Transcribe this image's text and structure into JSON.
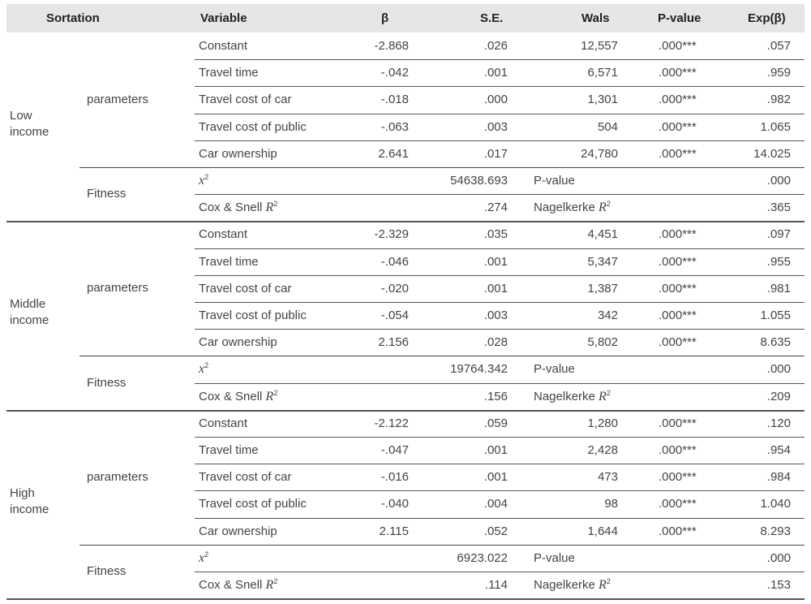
{
  "headers": {
    "sortation": "Sortation",
    "variable": "Variable",
    "beta": "β",
    "se": "S.E.",
    "wals": "Wals",
    "pvalue": "P-value",
    "expb": "Exp(β)"
  },
  "section_labels": {
    "parameters": "parameters",
    "fitness": "Fitness"
  },
  "fitness_labels": {
    "chi_symbol": "x",
    "chi_sup": "2",
    "pvalue": "P-value",
    "cox_prefix": "Cox & Snell ",
    "nagel_prefix": "Nagelkerke ",
    "r_symbol": "R",
    "r_sup": "2"
  },
  "groups": [
    {
      "label_line1": "Low",
      "label_line2": "income",
      "rows": [
        {
          "variable": "Constant",
          "beta": "-2.868",
          "se": ".026",
          "wals": "12,557",
          "p": ".000***",
          "exp": ".057"
        },
        {
          "variable": "Travel time",
          "beta": "-.042",
          "se": ".001",
          "wals": "6,571",
          "p": ".000***",
          "exp": ".959"
        },
        {
          "variable": "Travel cost of car",
          "beta": "-.018",
          "se": ".000",
          "wals": "1,301",
          "p": ".000***",
          "exp": ".982"
        },
        {
          "variable": "Travel cost of public",
          "beta": "-.063",
          "se": ".003",
          "wals": "504",
          "p": ".000***",
          "exp": "1.065"
        },
        {
          "variable": "Car ownership",
          "beta": "2.641",
          "se": ".017",
          "wals": "24,780",
          "p": ".000***",
          "exp": "14.025"
        }
      ],
      "fitness": {
        "chi2": "54638.693",
        "pvalue": ".000",
        "cox": ".274",
        "nagel": ".365"
      }
    },
    {
      "label_line1": "Middle",
      "label_line2": "income",
      "rows": [
        {
          "variable": "Constant",
          "beta": "-2.329",
          "se": ".035",
          "wals": "4,451",
          "p": ".000***",
          "exp": ".097"
        },
        {
          "variable": "Travel time",
          "beta": "-.046",
          "se": ".001",
          "wals": "5,347",
          "p": ".000***",
          "exp": ".955"
        },
        {
          "variable": "Travel cost of car",
          "beta": "-.020",
          "se": ".001",
          "wals": "1,387",
          "p": ".000***",
          "exp": ".981"
        },
        {
          "variable": "Travel cost of public",
          "beta": "-.054",
          "se": ".003",
          "wals": "342",
          "p": ".000***",
          "exp": "1.055"
        },
        {
          "variable": "Car ownership",
          "beta": "2.156",
          "se": ".028",
          "wals": "5,802",
          "p": ".000***",
          "exp": "8.635"
        }
      ],
      "fitness": {
        "chi2": "19764.342",
        "pvalue": ".000",
        "cox": ".156",
        "nagel": ".209"
      }
    },
    {
      "label_line1": "High",
      "label_line2": "income",
      "rows": [
        {
          "variable": "Constant",
          "beta": "-2.122",
          "se": ".059",
          "wals": "1,280",
          "p": ".000***",
          "exp": ".120"
        },
        {
          "variable": "Travel time",
          "beta": "-.047",
          "se": ".001",
          "wals": "2,428",
          "p": ".000***",
          "exp": ".954"
        },
        {
          "variable": "Travel cost of car",
          "beta": "-.016",
          "se": ".001",
          "wals": "473",
          "p": ".000***",
          "exp": ".984"
        },
        {
          "variable": "Travel cost of public",
          "beta": "-.040",
          "se": ".004",
          "wals": "98",
          "p": ".000***",
          "exp": "1.040"
        },
        {
          "variable": "Car ownership",
          "beta": "2.115",
          "se": ".052",
          "wals": "1,644",
          "p": ".000***",
          "exp": "8.293"
        }
      ],
      "fitness": {
        "chi2": "6923.022",
        "pvalue": ".000",
        "cox": ".114",
        "nagel": ".153"
      }
    }
  ]
}
